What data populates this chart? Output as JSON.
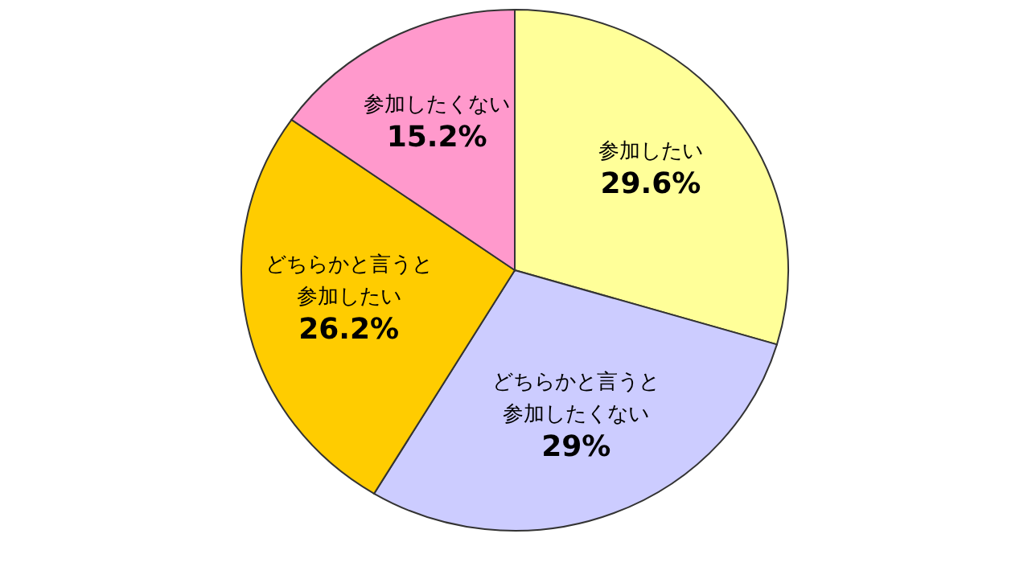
{
  "chart_data": {
    "type": "pie",
    "categories": [
      "参加したい",
      "どちらかと言うと参加したくない",
      "どちらかと言うと参加したい",
      "参加したくない"
    ],
    "values": [
      29.6,
      29,
      26.2,
      15.2
    ],
    "colors": [
      "#ffff99",
      "#ccccff",
      "#ffcc00",
      "#ff99cc"
    ],
    "value_labels": [
      "29.6%",
      "29%",
      "26.2%",
      "15.2%"
    ]
  }
}
